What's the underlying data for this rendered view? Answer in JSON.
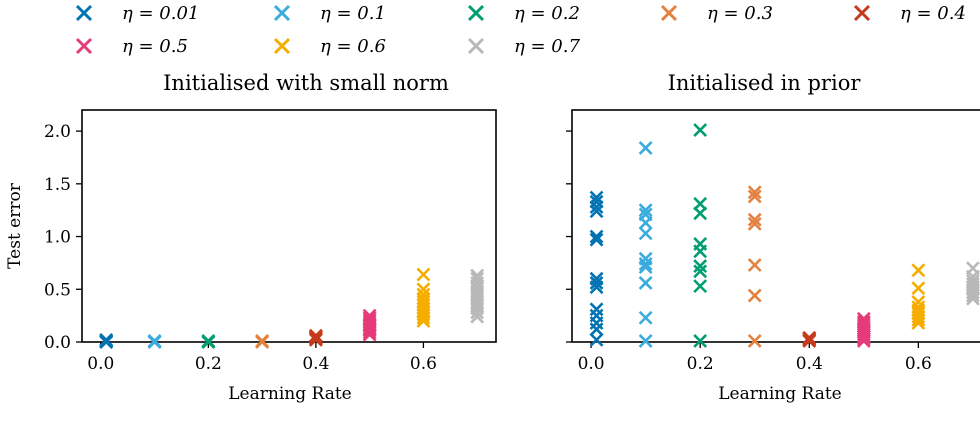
{
  "legend": [
    {
      "label": "η = 0.01",
      "color": "#0173b2"
    },
    {
      "label": "η = 0.1",
      "color": "#3aabdc"
    },
    {
      "label": "η = 0.2",
      "color": "#029e73"
    },
    {
      "label": "η = 0.3",
      "color": "#e5813e"
    },
    {
      "label": "η = 0.4",
      "color": "#c63a1c"
    },
    {
      "label": "η = 0.5",
      "color": "#e63b79"
    },
    {
      "label": "η = 0.6",
      "color": "#f5ae00"
    },
    {
      "label": "η = 0.7",
      "color": "#b8b8b8"
    }
  ],
  "chart_data": [
    {
      "type": "scatter",
      "title": "Initialised with small norm",
      "xlabel": "Learning Rate",
      "ylabel": "Test error",
      "xlim": [
        -0.035,
        0.735
      ],
      "ylim": [
        0,
        2.2
      ],
      "xticks": [
        "0.0",
        "0.2",
        "0.4",
        "0.6"
      ],
      "yticks": [
        "0.0",
        "0.5",
        "1.0",
        "1.5",
        "2.0"
      ],
      "grid": false,
      "series": [
        {
          "name": "η = 0.01",
          "x": 0.01,
          "values": [
            0.0,
            0.01,
            0.02,
            0.01,
            0.0
          ]
        },
        {
          "name": "η = 0.1",
          "x": 0.1,
          "values": [
            0.0,
            0.01,
            0.0
          ]
        },
        {
          "name": "η = 0.2",
          "x": 0.2,
          "values": [
            0.0,
            0.01,
            0.0
          ]
        },
        {
          "name": "η = 0.3",
          "x": 0.3,
          "values": [
            0.0,
            0.01
          ]
        },
        {
          "name": "η = 0.4",
          "x": 0.4,
          "values": [
            0.02,
            0.04,
            0.06,
            0.05,
            0.03
          ]
        },
        {
          "name": "η = 0.5",
          "x": 0.5,
          "values": [
            0.07,
            0.09,
            0.11,
            0.13,
            0.15,
            0.17,
            0.19,
            0.21,
            0.23,
            0.25,
            0.12,
            0.16
          ]
        },
        {
          "name": "η = 0.6",
          "x": 0.6,
          "values": [
            0.2,
            0.23,
            0.26,
            0.29,
            0.32,
            0.35,
            0.38,
            0.41,
            0.45,
            0.5,
            0.64,
            0.28
          ]
        },
        {
          "name": "η = 0.7",
          "x": 0.7,
          "values": [
            0.24,
            0.28,
            0.32,
            0.36,
            0.4,
            0.44,
            0.48,
            0.52,
            0.56,
            0.6,
            0.63,
            0.34,
            0.46
          ]
        }
      ]
    },
    {
      "type": "scatter",
      "title": "Initialised in prior",
      "xlabel": "Learning Rate",
      "ylabel": "",
      "xlim": [
        -0.035,
        0.735
      ],
      "ylim": [
        0,
        2.2
      ],
      "xticks": [
        "0.0",
        "0.2",
        "0.4",
        "0.6"
      ],
      "yticks": [],
      "grid": false,
      "series": [
        {
          "name": "η = 0.01",
          "x": 0.01,
          "values": [
            1.37,
            1.33,
            1.28,
            1.24,
            1.0,
            0.97,
            0.6,
            0.56,
            0.52,
            0.31,
            0.25,
            0.18,
            0.12,
            0.02
          ]
        },
        {
          "name": "η = 0.1",
          "x": 0.1,
          "values": [
            1.84,
            1.25,
            1.21,
            1.13,
            1.03,
            0.79,
            0.74,
            0.71,
            0.56,
            0.23,
            0.01
          ]
        },
        {
          "name": "η = 0.2",
          "x": 0.2,
          "values": [
            2.01,
            1.31,
            1.22,
            0.93,
            0.86,
            0.72,
            0.67,
            0.53,
            0.01
          ]
        },
        {
          "name": "η = 0.3",
          "x": 0.3,
          "values": [
            1.42,
            1.38,
            1.16,
            1.12,
            0.73,
            0.44,
            0.01
          ]
        },
        {
          "name": "η = 0.4",
          "x": 0.4,
          "values": [
            0.03,
            0.02,
            0.04,
            0.01
          ]
        },
        {
          "name": "η = 0.5",
          "x": 0.5,
          "values": [
            0.22,
            0.19,
            0.17,
            0.15,
            0.13,
            0.11,
            0.09,
            0.07,
            0.05,
            0.03,
            0.01
          ]
        },
        {
          "name": "η = 0.6",
          "x": 0.6,
          "values": [
            0.68,
            0.51,
            0.38,
            0.33,
            0.3,
            0.27,
            0.24,
            0.21,
            0.18
          ]
        },
        {
          "name": "η = 0.7",
          "x": 0.7,
          "values": [
            0.7,
            0.62,
            0.58,
            0.55,
            0.52,
            0.5,
            0.47,
            0.44,
            0.41
          ]
        }
      ]
    }
  ]
}
